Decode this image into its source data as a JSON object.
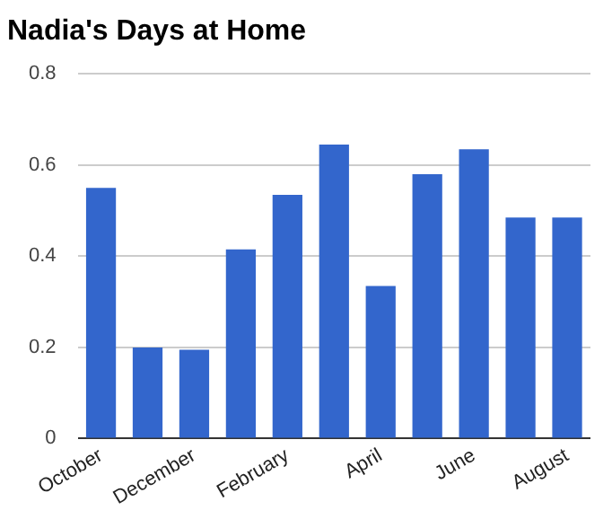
{
  "chart_data": {
    "type": "bar",
    "title": "Nadia's Days at Home",
    "categories": [
      "October",
      null,
      "December",
      null,
      "February",
      null,
      "April",
      null,
      "June",
      null,
      "August"
    ],
    "values": [
      0.55,
      0.2,
      0.195,
      0.415,
      0.535,
      0.645,
      0.335,
      0.58,
      0.635,
      0.485,
      0.485
    ],
    "color": "#3366cc",
    "ylim": [
      0,
      0.8
    ],
    "yticks": [
      0,
      0.2,
      0.4,
      0.6,
      0.8
    ],
    "grid": "y",
    "legend": false
  }
}
